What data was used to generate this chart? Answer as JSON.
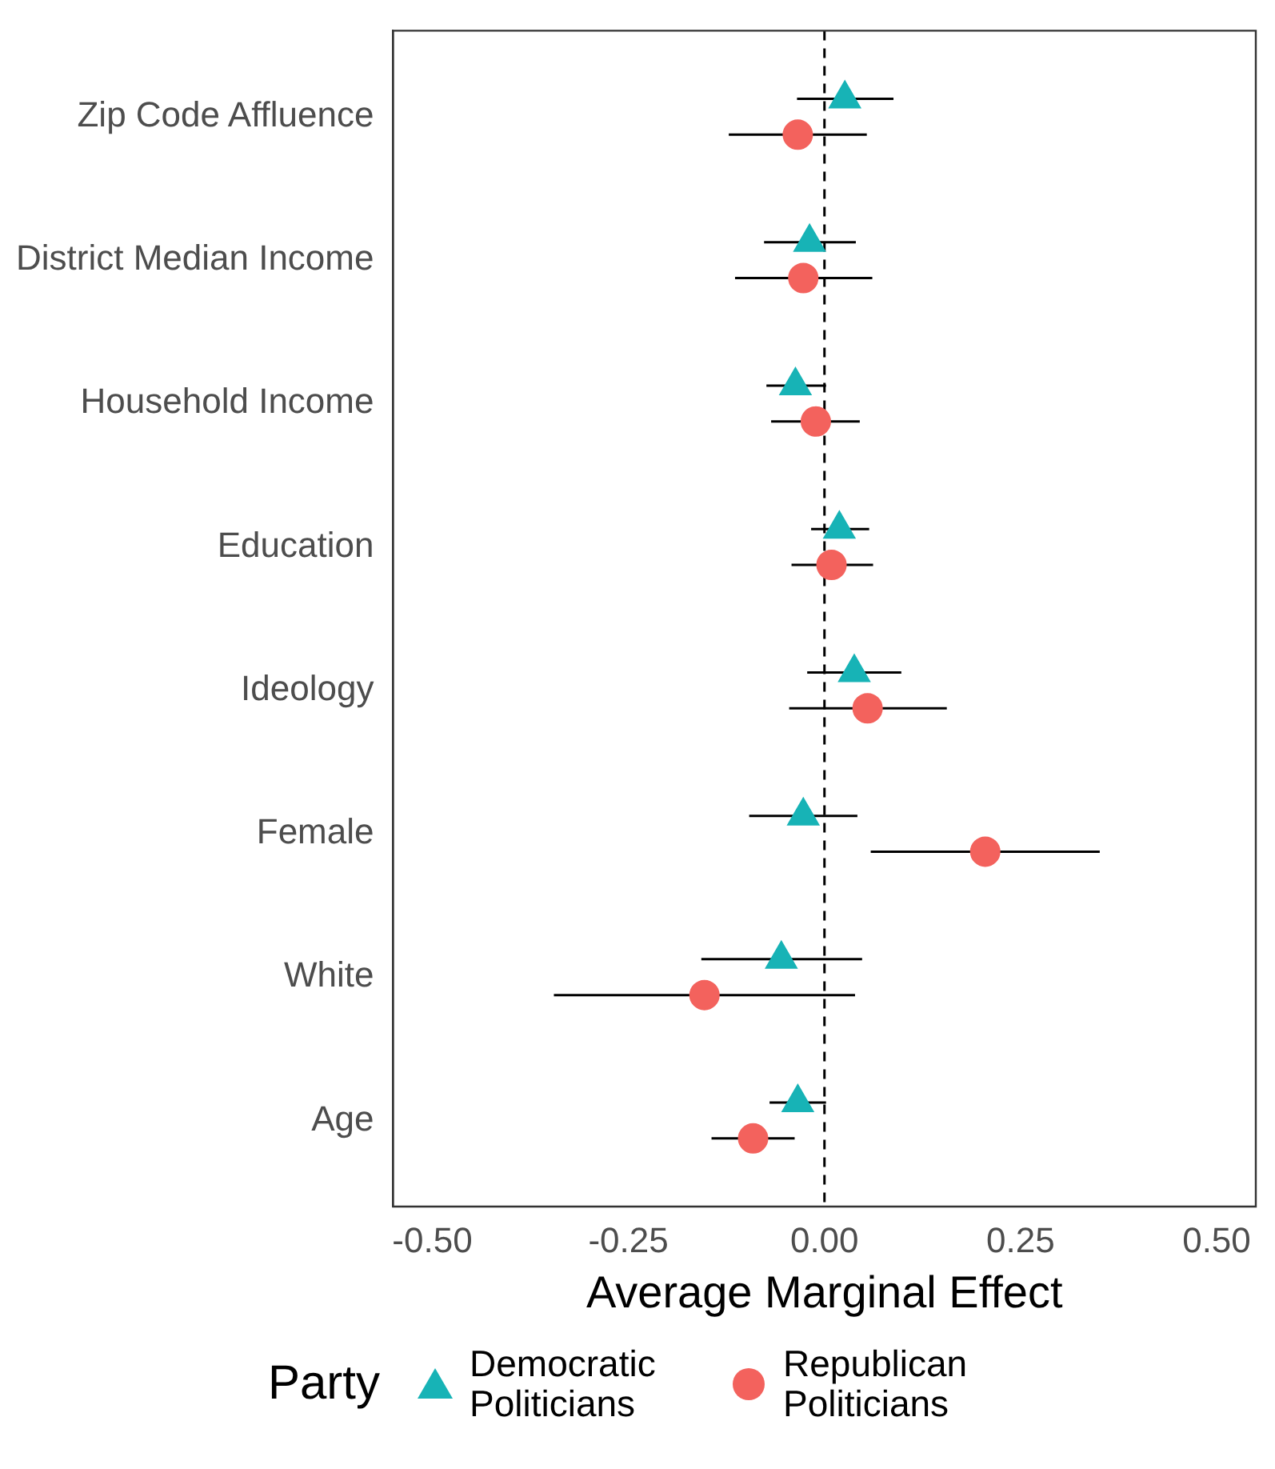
{
  "chart_data": {
    "type": "scatter",
    "orientation": "horizontal",
    "xlabel": "Average Marginal Effect",
    "legend_title": "Party",
    "legend": "bottom",
    "grid": false,
    "categories": [
      "Zip Code Affluence",
      "District Median Income",
      "Household Income",
      "Education",
      "Ideology",
      "Female",
      "White",
      "Age"
    ],
    "xlim": [
      -0.55,
      0.55
    ],
    "xticks": [
      {
        "value": -0.5,
        "label": "-0.50"
      },
      {
        "value": -0.25,
        "label": "-0.25"
      },
      {
        "value": 0,
        "label": "0.00"
      },
      {
        "value": 0.25,
        "label": "0.25"
      },
      {
        "value": 0.5,
        "label": "0.50"
      }
    ],
    "ref_lines": [
      {
        "axis": "x",
        "value": 0,
        "line_style": "dashed",
        "color": "#000000"
      }
    ],
    "series": [
      {
        "name": "Democratic Politicians",
        "color": "#17b3b6",
        "marker": "triangle",
        "values": [
          0.026,
          -0.019,
          -0.037,
          0.019,
          0.038,
          -0.027,
          -0.055,
          -0.034
        ],
        "errors": [
          [
            -0.035,
            0.088
          ],
          [
            -0.077,
            0.04
          ],
          [
            -0.074,
            0.002
          ],
          [
            -0.017,
            0.057
          ],
          [
            -0.022,
            0.098
          ],
          [
            -0.096,
            0.042
          ],
          [
            -0.157,
            0.048
          ],
          [
            -0.07,
            0.002
          ]
        ]
      },
      {
        "name": "Republican Politicians",
        "color": "#f3625d",
        "marker": "circle",
        "values": [
          -0.034,
          -0.027,
          -0.011,
          0.009,
          0.055,
          0.205,
          -0.153,
          -0.091
        ],
        "errors": [
          [
            -0.122,
            0.054
          ],
          [
            -0.114,
            0.061
          ],
          [
            -0.068,
            0.045
          ],
          [
            -0.042,
            0.062
          ],
          [
            -0.045,
            0.156
          ],
          [
            0.059,
            0.351
          ],
          [
            -0.345,
            0.039
          ],
          [
            -0.144,
            -0.038
          ]
        ]
      }
    ]
  }
}
